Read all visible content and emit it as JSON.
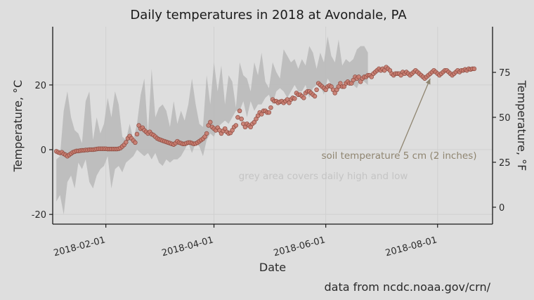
{
  "chart_data": {
    "type": "scatter",
    "title": "Daily temperatures in 2018 at Avondale, PA",
    "xlabel": "Date",
    "ylabel_left": "Temperature, °C",
    "ylabel_right": "Temperature, °F",
    "caption": "data from ncdc.noaa.gov/crn/",
    "xlim": [
      "2018-01-03",
      "2018-08-31"
    ],
    "ylim_left": [
      -23,
      38
    ],
    "x_ticks": [
      "2018-02-01",
      "2018-04-01",
      "2018-06-01",
      "2018-08-01"
    ],
    "y_ticks_left": [
      -20,
      0,
      20
    ],
    "y_ticks_right": [
      0,
      25,
      50,
      75
    ],
    "grid": true,
    "annotations": {
      "soil_label": "soil temperature 5 cm (2 inches)",
      "band_label": "grey area covers daily high and low",
      "arrow_from": {
        "x": "2018-07-11",
        "y": -1.0
      },
      "arrow_to": {
        "x": "2018-07-28",
        "y": 22.0
      }
    },
    "colors": {
      "points_fill": "#c97b6e",
      "points_stroke": "#8a4a40",
      "band": "#b8b8b8",
      "background": "#dedede",
      "annotation": "#8f8570"
    },
    "series": [
      {
        "kind": "band",
        "start": "2018-01-05",
        "step_days": 2,
        "high": [
          -3,
          -2,
          12,
          18,
          10,
          6,
          5,
          2,
          15,
          18,
          3,
          10,
          5,
          8,
          16,
          10,
          18,
          14,
          4,
          3,
          8,
          3,
          8,
          17,
          22,
          5,
          25,
          10,
          13,
          14,
          12,
          7,
          15,
          8,
          12,
          9,
          14,
          22,
          14,
          8,
          7,
          23,
          14,
          27,
          18,
          26,
          14,
          23,
          21,
          13,
          27,
          23,
          22,
          18,
          27,
          23,
          30,
          21,
          19,
          27,
          24,
          22,
          31,
          29,
          27,
          28,
          25,
          28,
          26,
          32,
          30,
          25,
          30,
          27,
          35,
          29,
          27,
          34,
          26,
          28,
          27,
          28,
          31,
          32,
          32,
          30
        ],
        "low": [
          -16,
          -14,
          -20,
          -10,
          -8,
          -12,
          -4,
          -6,
          -3,
          -10,
          -12,
          -8,
          -6,
          -5,
          -2,
          -12,
          -6,
          -5,
          -7,
          -4,
          -3,
          -2,
          0,
          -1,
          -2,
          -1,
          -3,
          -1,
          -4,
          -5,
          -3,
          -4,
          -3,
          -3,
          -2,
          0,
          2,
          -1,
          2,
          1,
          -2,
          3,
          5,
          4,
          7,
          8,
          9,
          8,
          10,
          12,
          12,
          15,
          10,
          15,
          12,
          14,
          14,
          16,
          17,
          14,
          18,
          19,
          18,
          16,
          18,
          20,
          18,
          18,
          20,
          16,
          19,
          20,
          20,
          17,
          22,
          20,
          19,
          18,
          21,
          20,
          21,
          20,
          19,
          22,
          21,
          20
        ]
      },
      {
        "kind": "points",
        "name": "soil temperature 5 cm (2 inches)",
        "start": "2018-01-05",
        "step_days": 1,
        "values": [
          -0.5,
          -0.8,
          -1.0,
          -0.8,
          -1.3,
          -1.6,
          -2.0,
          -1.6,
          -1.2,
          -0.8,
          -0.6,
          -0.4,
          -0.4,
          -0.3,
          -0.2,
          -0.2,
          -0.1,
          -0.1,
          0.0,
          0.0,
          0.0,
          0.1,
          0.2,
          0.3,
          0.3,
          0.3,
          0.3,
          0.3,
          0.2,
          0.2,
          0.2,
          0.2,
          0.2,
          0.2,
          0.3,
          0.5,
          1.0,
          1.5,
          2.3,
          3.5,
          4.2,
          3.5,
          2.8,
          2.2,
          4.8,
          7.5,
          6.5,
          6.8,
          6.0,
          5.5,
          5.0,
          5.5,
          4.8,
          4.5,
          4.0,
          3.5,
          3.2,
          3.0,
          2.8,
          2.6,
          2.4,
          2.2,
          2.0,
          1.8,
          1.6,
          2.0,
          2.6,
          2.2,
          2.0,
          1.8,
          1.8,
          2.0,
          2.2,
          2.2,
          2.0,
          1.8,
          1.9,
          2.2,
          2.6,
          3.0,
          3.4,
          4.0,
          5.0,
          7.5,
          8.5,
          7.0,
          6.5,
          6.0,
          6.8,
          6.0,
          5.0,
          5.8,
          6.5,
          5.5,
          5.0,
          5.2,
          6.0,
          7.0,
          7.5,
          10.0,
          12.0,
          9.5,
          8.0,
          7.0,
          8.0,
          7.5,
          7.0,
          8.0,
          8.5,
          9.5,
          10.5,
          11.5,
          11.0,
          12.0,
          12.0,
          11.5,
          11.5,
          13.0,
          15.5,
          15.0,
          15.0,
          14.5,
          14.8,
          15.0,
          14.5,
          15.0,
          15.5,
          14.5,
          15.5,
          16.0,
          15.8,
          17.5,
          17.0,
          17.0,
          16.5,
          16.0,
          17.5,
          18.0,
          18.0,
          17.5,
          17.0,
          16.5,
          18.5,
          20.5,
          20.0,
          19.5,
          19.0,
          18.5,
          19.5,
          19.8,
          19.5,
          18.5,
          17.5,
          18.5,
          19.5,
          20.5,
          19.5,
          19.5,
          20.5,
          21.0,
          20.5,
          20.5,
          21.5,
          22.5,
          22.0,
          22.5,
          21.0,
          22.0,
          22.5,
          22.5,
          23.0,
          23.0,
          22.5,
          23.5,
          24.0,
          24.5,
          25.0,
          24.5,
          25.0,
          24.5,
          25.5,
          25.0,
          24.5,
          23.5,
          23.0,
          23.5,
          23.5,
          23.5,
          23.0,
          24.0,
          23.5,
          24.0,
          23.5,
          23.0,
          23.5,
          24.0,
          24.5,
          24.0,
          23.5,
          23.0,
          22.5,
          22.0,
          22.5,
          23.0,
          23.5,
          24.0,
          24.5,
          24.0,
          23.5,
          23.0,
          23.5,
          24.0,
          24.5,
          24.5,
          24.0,
          23.5,
          23.0,
          23.5,
          24.0,
          24.5,
          24.0,
          24.5,
          24.5,
          24.8,
          24.5,
          25.0,
          24.8,
          25.0,
          25.0
        ]
      }
    ]
  }
}
